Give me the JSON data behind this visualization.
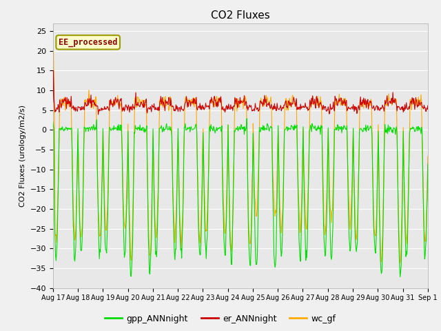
{
  "title": "CO2 Fluxes",
  "ylabel": "CO2 Fluxes (urology/m2/s)",
  "ylim": [
    -40,
    27
  ],
  "yticks": [
    -40,
    -35,
    -30,
    -25,
    -20,
    -15,
    -10,
    -5,
    0,
    5,
    10,
    15,
    20,
    25
  ],
  "background_color": "#f0f0f0",
  "plot_bg_color": "#e8e8e8",
  "grid_color": "#ffffff",
  "ee_label": "EE_processed",
  "ee_label_color": "#8b0000",
  "ee_box_facecolor": "#ffffcc",
  "ee_box_edgecolor": "#999900",
  "legend_entries": [
    "gpp_ANNnight",
    "er_ANNnight",
    "wc_gf"
  ],
  "legend_colors": [
    "#00dd00",
    "#cc0000",
    "#ffaa00"
  ],
  "n_days": 15,
  "points_per_day": 48,
  "line_width": 0.8,
  "x_tick_labels": [
    "Aug 17",
    "Aug 18",
    "Aug 19",
    "Aug 20",
    "Aug 21",
    "Aug 22",
    "Aug 23",
    "Aug 24",
    "Aug 25",
    "Aug 26",
    "Aug 27",
    "Aug 28",
    "Aug 29",
    "Aug 30",
    "Aug 31",
    "Sep 1"
  ]
}
